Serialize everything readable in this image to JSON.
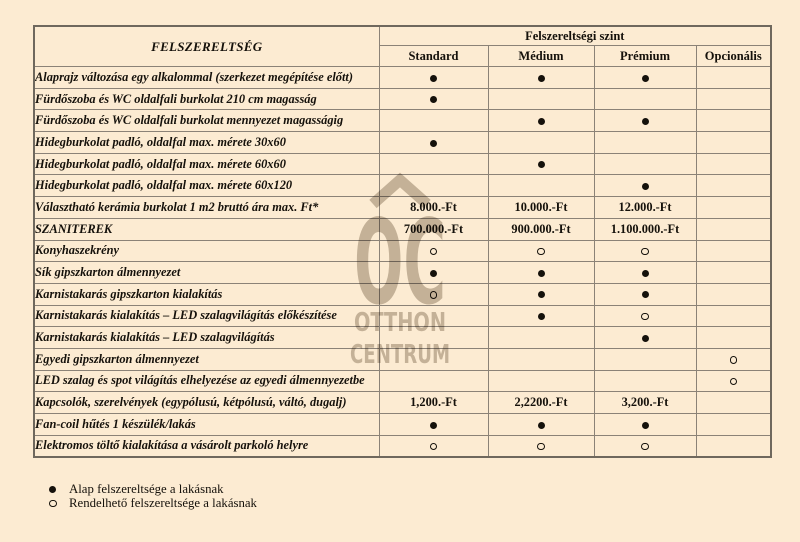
{
  "table": {
    "corner_header": "FELSZERELTSÉG",
    "group_header": "Felszereltségi szint",
    "level_headers": [
      "Standard",
      "Médium",
      "Prémium",
      "Opcionális"
    ],
    "rows": [
      {
        "label": "Alaprajz változása egy alkalommal (szerkezet megépítése előtt)",
        "cells": [
          "dot",
          "dot",
          "dot",
          ""
        ]
      },
      {
        "label": "Fürdőszoba és WC oldalfali burkolat 210 cm magasság",
        "cells": [
          "dot",
          "",
          "",
          ""
        ]
      },
      {
        "label": "Fürdőszoba és WC oldalfali burkolat mennyezet magasságig",
        "cells": [
          "",
          "dot",
          "dot",
          ""
        ]
      },
      {
        "label": "Hidegburkolat  padló, oldalfal max. mérete 30x60",
        "cells": [
          "dot",
          "",
          "",
          ""
        ]
      },
      {
        "label": "Hidegburkolat  padló, oldalfal  max. mérete 60x60",
        "cells": [
          "",
          "dot",
          "",
          ""
        ]
      },
      {
        "label": "Hidegburkolat  padló, oldalfal max. mérete 60x120",
        "cells": [
          "",
          "",
          "dot",
          ""
        ]
      },
      {
        "label": "Választható kerámia burkolat 1 m2 bruttó ára max. Ft*",
        "cells": [
          "8.000.-Ft",
          "10.000.-Ft",
          "12.000.-Ft",
          ""
        ]
      },
      {
        "label": "SZANITEREK",
        "cells": [
          "700.000.-Ft",
          "900.000.-Ft",
          "1.100.000.-Ft",
          ""
        ]
      },
      {
        "label": "Konyhaszekrény",
        "cells": [
          "circle",
          "circle",
          "circle",
          ""
        ]
      },
      {
        "label": "Sík gipszkarton álmennyezet",
        "cells": [
          "dot",
          "dot",
          "dot",
          ""
        ]
      },
      {
        "label": "Karnistakarás gipszkarton kialakítás",
        "cells": [
          "circle",
          "dot",
          "dot",
          ""
        ]
      },
      {
        "label": "Karnistakarás kialakítás – LED szalagvilágítás előkészítése",
        "cells": [
          "",
          "dot",
          "circle",
          ""
        ]
      },
      {
        "label": "Karnistakarás kialakítás – LED szalagvilágítás",
        "cells": [
          "",
          "",
          "dot",
          ""
        ]
      },
      {
        "label": "Egyedi gipszkarton álmennyezet",
        "cells": [
          "",
          "",
          "",
          "circle"
        ]
      },
      {
        "label": "LED szalag és spot világítás elhelyezése az egyedi álmennyezetbe",
        "cells": [
          "",
          "",
          "",
          "circle"
        ]
      },
      {
        "label": "Kapcsolók, szerelvények (egypólusú, kétpólusú, váltó, dugalj)",
        "cells": [
          "1,200.-Ft",
          "2,2200.-Ft",
          "3,200.-Ft",
          ""
        ]
      },
      {
        "label": "Fan-coil hűtés 1 készülék/lakás",
        "cells": [
          "dot",
          "dot",
          "dot",
          ""
        ]
      },
      {
        "label": "Elektromos töltő kialakítása a vásárolt parkoló helyre",
        "cells": [
          "circle",
          "circle",
          "circle",
          ""
        ]
      }
    ]
  },
  "legend": [
    {
      "symbol": "dot",
      "text": "Alap felszereltsége a lakásnak"
    },
    {
      "symbol": "circle",
      "text": "Rendelhető felszereltsége a lakásnak"
    }
  ],
  "watermark": {
    "letters": "OC",
    "line1": "OTTHON",
    "line2": "CENTRUM"
  },
  "colors": {
    "background": "#fcebd2",
    "grid_line": "#8b8277",
    "text": "#15110b",
    "watermark": "#8f8272"
  }
}
